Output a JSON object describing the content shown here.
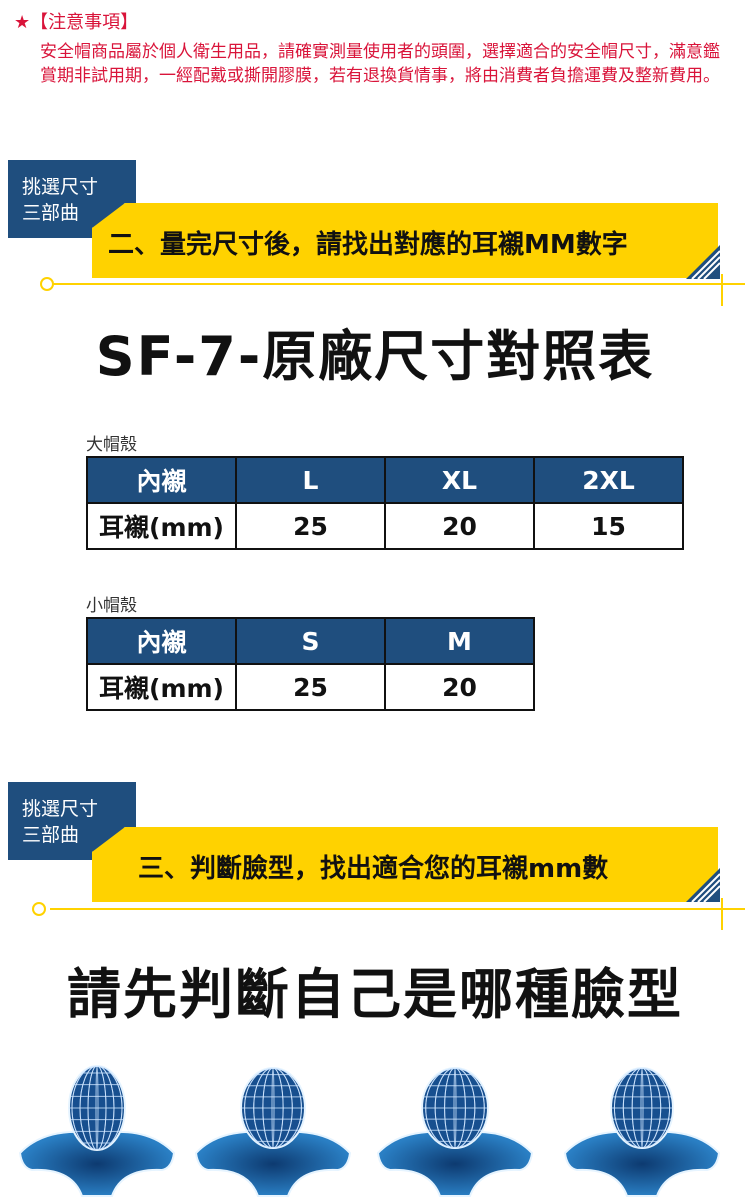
{
  "notice": {
    "star": "★",
    "title": "【注意事項】",
    "body": "安全帽商品屬於個人衛生用品，請確實測量使用者的頭圍，選擇適合的安全帽尺寸，滿意鑑賞期非試用期，一經配戴或撕開膠膜，若有退換貨情事，將由消費者負擔運費及整新費用。"
  },
  "section2": {
    "tag_line1": "挑選尺寸",
    "tag_line2": "三部曲",
    "heading": "二、量完尺寸後，請找出對應的耳襯MM數字"
  },
  "chart_title": "SF-7-原廠尺寸對照表",
  "large_shell": {
    "caption": "大帽殼",
    "header": [
      "內襯",
      "L",
      "XL",
      "2XL"
    ],
    "row": [
      "耳襯(mm)",
      "25",
      "20",
      "15"
    ]
  },
  "small_shell": {
    "caption": "小帽殼",
    "header": [
      "內襯",
      "S",
      "M"
    ],
    "row": [
      "耳襯(mm)",
      "25",
      "20"
    ]
  },
  "section3": {
    "tag_line1": "挑選尺寸",
    "tag_line2": "三部曲",
    "heading": "三、判斷臉型，找出適合您的耳襯mm數"
  },
  "face_title": "請先判斷自己是哪種臉型",
  "colors": {
    "brand_blue": "#1f4e7e",
    "accent_yellow": "#ffd200",
    "notice_red": "#d9143a"
  }
}
